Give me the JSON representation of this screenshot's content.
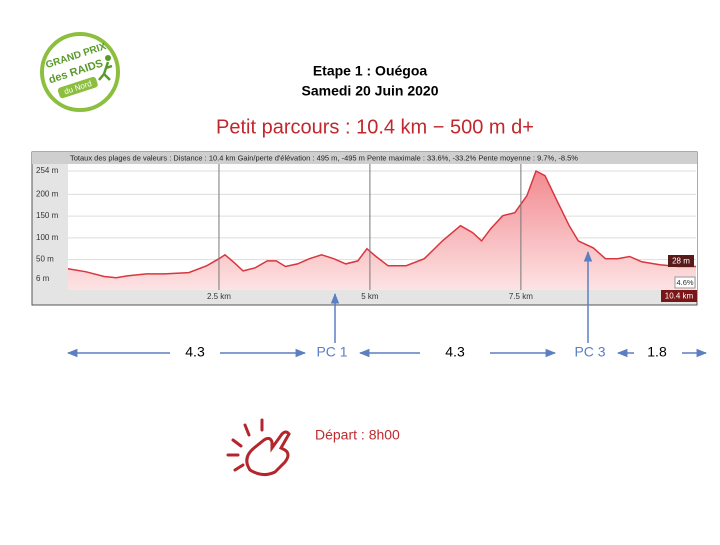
{
  "logo": {
    "line1": "GRAND PRIX",
    "line2": "des RAIDS",
    "line3": "du Nord"
  },
  "header": {
    "title": "Etape 1 : Ouégoa",
    "date": "Samedi 20 Juin 2020",
    "course": "Petit parcours :  10.4 km − 500 m d+"
  },
  "chart_data": {
    "type": "area",
    "stats": "Totaux des plages de valeurs : Distance : 10.4 km   Gain/perte d'élévation : 495 m, -495 m   Pente maximale : 33.6%, -33.2%   Pente moyenne : 9.7%, -8.5%",
    "x": [
      0,
      0.3,
      0.6,
      0.8,
      1.0,
      1.3,
      1.6,
      2.0,
      2.3,
      2.5,
      2.6,
      2.75,
      2.9,
      3.1,
      3.3,
      3.45,
      3.6,
      3.8,
      4.0,
      4.2,
      4.4,
      4.6,
      4.8,
      4.95,
      5.1,
      5.3,
      5.6,
      5.9,
      6.2,
      6.5,
      6.7,
      6.85,
      7.0,
      7.2,
      7.4,
      7.6,
      7.75,
      7.9,
      8.1,
      8.3,
      8.45,
      8.7,
      8.9,
      9.1,
      9.3,
      9.5,
      9.8,
      10.1,
      10.4
    ],
    "values": [
      29,
      22,
      11,
      8,
      13,
      17,
      17,
      20,
      36,
      52,
      61,
      43,
      24,
      31,
      47,
      47,
      34,
      40,
      52,
      61,
      52,
      40,
      47,
      75,
      57,
      36,
      36,
      52,
      93,
      128,
      112,
      93,
      121,
      151,
      158,
      197,
      254,
      243,
      185,
      128,
      93,
      77,
      52,
      52,
      57,
      45,
      38,
      34,
      34
    ],
    "color": "#d9363e",
    "xlim": [
      0,
      10.4
    ],
    "ylim": [
      -20,
      270
    ],
    "xticks": [
      {
        "value": 2.5,
        "label": "2.5 km"
      },
      {
        "value": 5,
        "label": "5 km"
      },
      {
        "value": 7.5,
        "label": "7.5 km"
      }
    ],
    "yticks": [
      {
        "value": 6,
        "label": "6 m"
      },
      {
        "value": 50,
        "label": "50 m"
      },
      {
        "value": 100,
        "label": "100 m"
      },
      {
        "value": 150,
        "label": "150 m"
      },
      {
        "value": 200,
        "label": "200 m"
      },
      {
        "value": 254,
        "label": "254 m"
      }
    ],
    "grid": true,
    "readout": {
      "elevation": "28 m",
      "slope": "4.6%",
      "distance": "10.4 km"
    }
  },
  "route": {
    "segments": [
      4.3,
      4.3,
      1.8
    ],
    "checkpoints": [
      "PC 1",
      "PC 3"
    ]
  },
  "start": "Départ : 8h00"
}
